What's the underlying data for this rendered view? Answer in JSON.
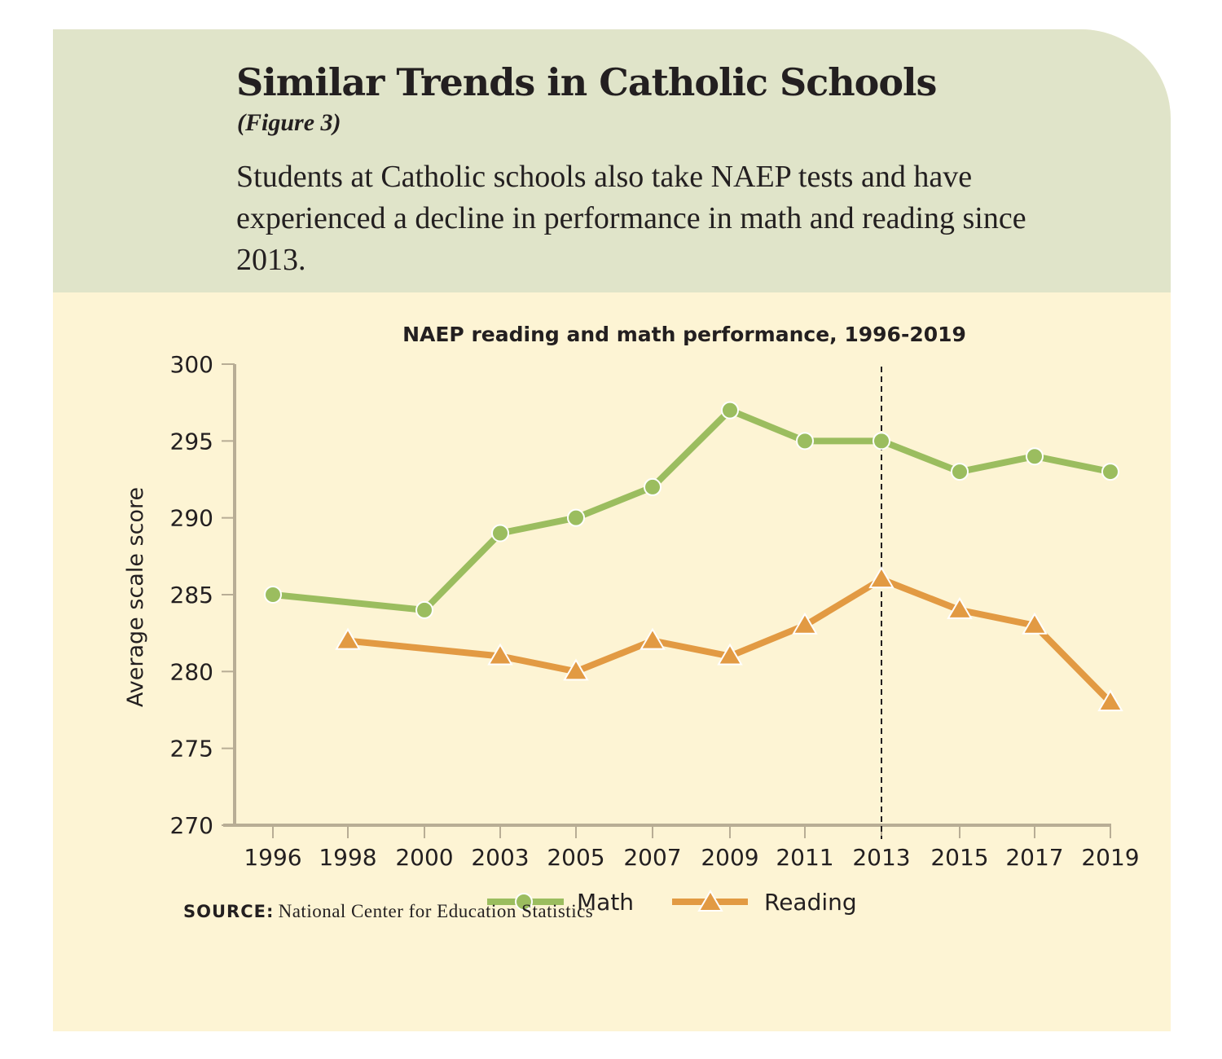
{
  "header": {
    "title": "Similar Trends in Catholic Schools",
    "figure_label": "(Figure 3)",
    "subtitle": "Students at Catholic schools also take NAEP tests and have experienced a decline in performance in math and reading since 2013."
  },
  "colors": {
    "header_bg": "#e0e4c9",
    "panel_bg": "#fdf4d4",
    "math": "#9bbd5f",
    "reading": "#e29a43",
    "axis": "#b8ad95",
    "text": "#231f20"
  },
  "source": {
    "label": "SOURCE:",
    "text": "National Center for Education Statistics"
  },
  "chart_data": {
    "type": "line",
    "title": "NAEP reading and math performance, 1996-2019",
    "xlabel": "",
    "ylabel": "Average scale score",
    "categories": [
      "1996",
      "1998",
      "2000",
      "2003",
      "2005",
      "2007",
      "2009",
      "2011",
      "2013",
      "2015",
      "2017",
      "2019"
    ],
    "ylim": [
      270,
      300
    ],
    "yticks": [
      270,
      275,
      280,
      285,
      290,
      295,
      300
    ],
    "grid": false,
    "legend_position": "bottom-center",
    "reference_line": {
      "x": "2013",
      "style": "dashed"
    },
    "series": [
      {
        "name": "Math",
        "marker": "circle",
        "values": [
          285,
          null,
          284,
          289,
          290,
          292,
          297,
          295,
          295,
          293,
          294,
          293
        ]
      },
      {
        "name": "Reading",
        "marker": "triangle",
        "values": [
          null,
          282,
          null,
          281,
          280,
          282,
          281,
          283,
          286,
          284,
          283,
          278
        ]
      }
    ]
  }
}
